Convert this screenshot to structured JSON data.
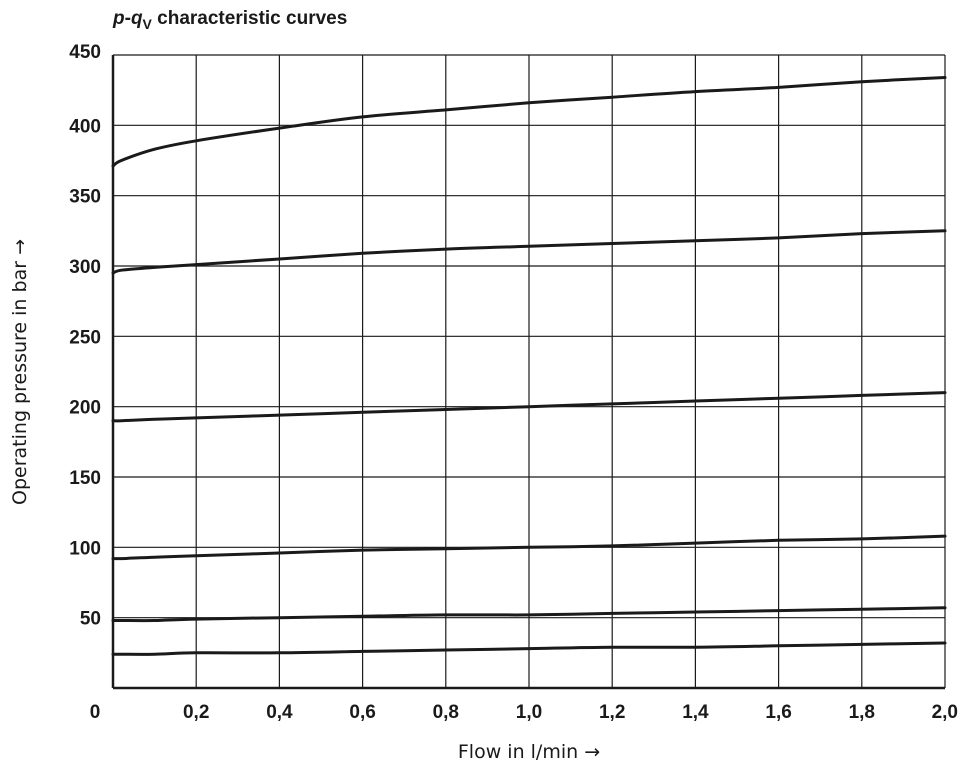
{
  "chart_data": {
    "type": "line",
    "title_parts": {
      "p": "p",
      "dash": "-",
      "q": "q",
      "sub": "V",
      "rest": " characteristic curves"
    },
    "xlabel": "Flow in l/min →",
    "ylabel": "Operating pressure in bar →",
    "xlim": [
      0,
      2.0
    ],
    "ylim": [
      0,
      450
    ],
    "x_ticks": [
      0,
      0.2,
      0.4,
      0.6,
      0.8,
      1.0,
      1.2,
      1.4,
      1.6,
      1.8,
      2.0
    ],
    "x_tick_labels": [
      "0",
      "0,2",
      "0,4",
      "0,6",
      "0,8",
      "1,0",
      "1,2",
      "1,4",
      "1,6",
      "1,8",
      "2,0"
    ],
    "y_ticks": [
      50,
      100,
      150,
      200,
      250,
      300,
      350,
      400,
      450
    ],
    "y_tick_labels": [
      "50",
      "100",
      "150",
      "200",
      "250",
      "300",
      "350",
      "400",
      "450"
    ],
    "grid": true,
    "x": [
      0,
      0.02,
      0.1,
      0.2,
      0.4,
      0.6,
      0.8,
      1.0,
      1.2,
      1.4,
      1.6,
      1.8,
      2.0
    ],
    "series": [
      {
        "values": [
          371,
          375,
          383,
          389,
          398,
          406,
          411,
          416,
          420,
          424,
          427,
          431,
          434
        ]
      },
      {
        "values": [
          295,
          297,
          299,
          301,
          305,
          309,
          312,
          314,
          316,
          318,
          320,
          323,
          325
        ]
      },
      {
        "values": [
          190,
          190,
          191,
          192,
          194,
          196,
          198,
          200,
          202,
          204,
          206,
          208,
          210
        ]
      },
      {
        "values": [
          92,
          92,
          93,
          94,
          96,
          98,
          99,
          100,
          101,
          103,
          105,
          106,
          108
        ]
      },
      {
        "values": [
          48,
          48,
          48,
          49,
          50,
          51,
          52,
          52,
          53,
          54,
          55,
          56,
          57
        ]
      },
      {
        "values": [
          24,
          24,
          24,
          25,
          25,
          26,
          27,
          28,
          29,
          29,
          30,
          31,
          32
        ]
      }
    ]
  }
}
